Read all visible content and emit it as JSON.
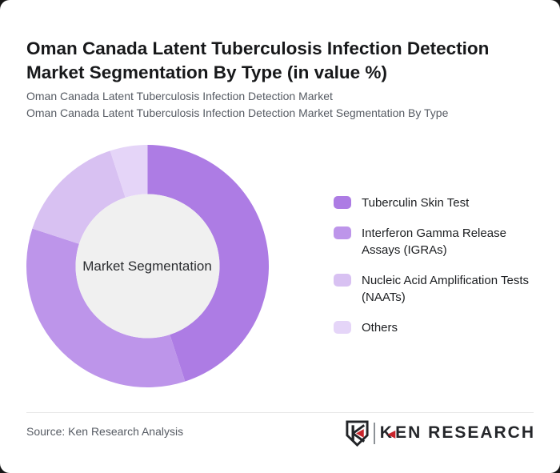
{
  "page": {
    "title": "Oman Canada Latent Tuberculosis Infection Detection Market Segmentation By Type (in value %)",
    "subtitle_line1": "Oman Canada Latent Tuberculosis Infection Detection Market",
    "subtitle_line2": "Oman Canada Latent Tuberculosis Infection Detection Market Segmentation By Type"
  },
  "chart_data": {
    "type": "pie",
    "variant": "donut",
    "title": "Oman Canada Latent Tuberculosis Infection Detection Market Segmentation By Type (in value %)",
    "center_label": "Market Segmentation",
    "categories": [
      "Tuberculin Skin Test",
      "Interferon Gamma Release Assays (IGRAs)",
      "Nucleic Acid Amplification Tests (NAATs)",
      "Others"
    ],
    "values": [
      45,
      35,
      15,
      5
    ],
    "unit": "%",
    "colors": [
      "#ad7ce4",
      "#bd95ea",
      "#d8c1f2",
      "#e5d5f8"
    ],
    "inner_circle_color": "#f0f0f0",
    "start_angle_deg": 0,
    "direction": "clockwise",
    "legend_position": "right",
    "data_labels_shown": false
  },
  "footer": {
    "source": "Source: Ken Research Analysis",
    "logo": {
      "badge_letter": "K",
      "wordmark_k": "K",
      "wordmark_rest": "EN RESEARCH",
      "accent_color": "#c9252c"
    }
  }
}
